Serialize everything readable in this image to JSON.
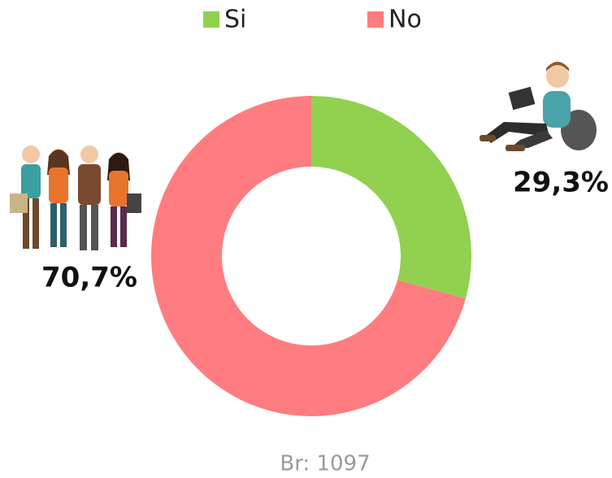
{
  "chart_data": {
    "type": "pie",
    "donut": true,
    "legend": "top",
    "categories": [
      "Si",
      "No"
    ],
    "values": [
      29.3,
      70.7
    ],
    "value_labels": [
      "29,3%",
      "70,7%"
    ],
    "colors": [
      "#92d050",
      "#ff7c80"
    ],
    "note": "Br: 1097"
  }
}
